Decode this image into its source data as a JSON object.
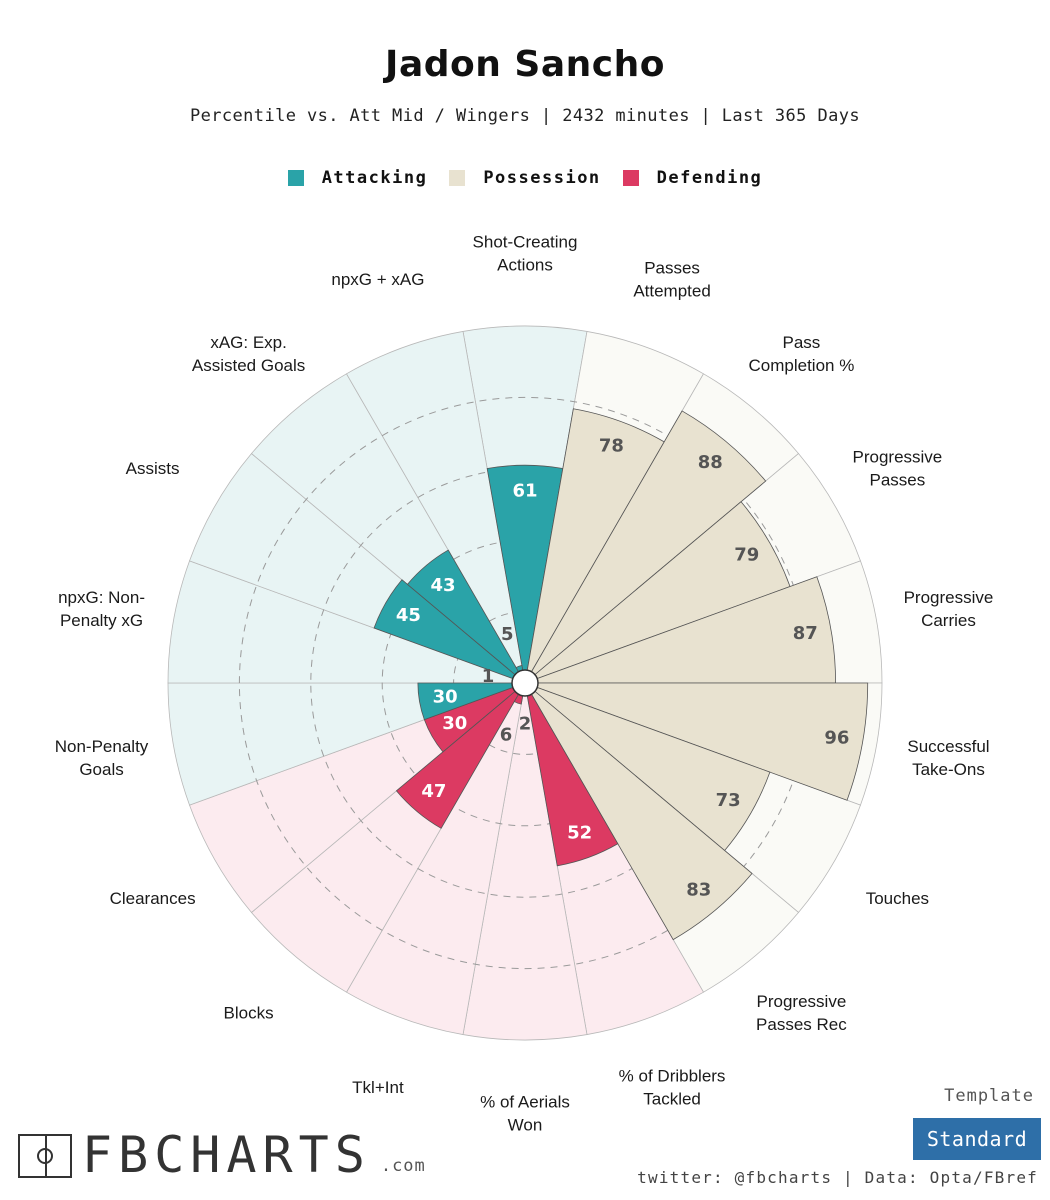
{
  "header": {
    "title": "Jadon Sancho",
    "subtitle": "Percentile vs. Att Mid / Wingers | 2432 minutes | Last 365 Days"
  },
  "legend": [
    {
      "label": "Attacking",
      "color": "#2aa3a8"
    },
    {
      "label": "Possession",
      "color": "#e8e2d0"
    },
    {
      "label": "Defending",
      "color": "#dc3a62"
    }
  ],
  "chart_data": {
    "type": "radar-bar",
    "ylim": [
      0,
      100
    ],
    "grid": true,
    "legend_placement": "top-center",
    "categories": [
      {
        "label": "Shot-Creating\nActions",
        "group": "Attacking",
        "value": 61
      },
      {
        "label": "Passes\nAttempted",
        "group": "Possession",
        "value": 78
      },
      {
        "label": "Pass\nCompletion %",
        "group": "Possession",
        "value": 88
      },
      {
        "label": "Progressive\nPasses",
        "group": "Possession",
        "value": 79
      },
      {
        "label": "Progressive\nCarries",
        "group": "Possession",
        "value": 87
      },
      {
        "label": "Successful\nTake-Ons",
        "group": "Possession",
        "value": 96
      },
      {
        "label": "Touches",
        "group": "Possession",
        "value": 73
      },
      {
        "label": "Progressive\nPasses Rec",
        "group": "Possession",
        "value": 83
      },
      {
        "label": "% of Dribblers\nTackled",
        "group": "Defending",
        "value": 52
      },
      {
        "label": "% of Aerials\nWon",
        "group": "Defending",
        "value": 2
      },
      {
        "label": "Tkl+Int",
        "group": "Defending",
        "value": 6
      },
      {
        "label": "Blocks",
        "group": "Defending",
        "value": 47
      },
      {
        "label": "Clearances",
        "group": "Defending",
        "value": 30
      },
      {
        "label": "Non-Penalty\nGoals",
        "group": "Attacking",
        "value": 30
      },
      {
        "label": "npxG: Non-\nPenalty xG",
        "group": "Attacking",
        "value": 1
      },
      {
        "label": "Assists",
        "group": "Attacking",
        "value": 45
      },
      {
        "label": "xAG: Exp.\nAssisted Goals",
        "group": "Attacking",
        "value": 43
      },
      {
        "label": "npxG + xAG",
        "group": "Attacking",
        "value": 5
      }
    ]
  },
  "branding": {
    "template_label": "Template",
    "template_value": "Standard",
    "footer": "twitter: @fbcharts | Data: Opta/FBref",
    "logo_text": "FBCHARTS",
    "logo_suffix": ".com"
  }
}
